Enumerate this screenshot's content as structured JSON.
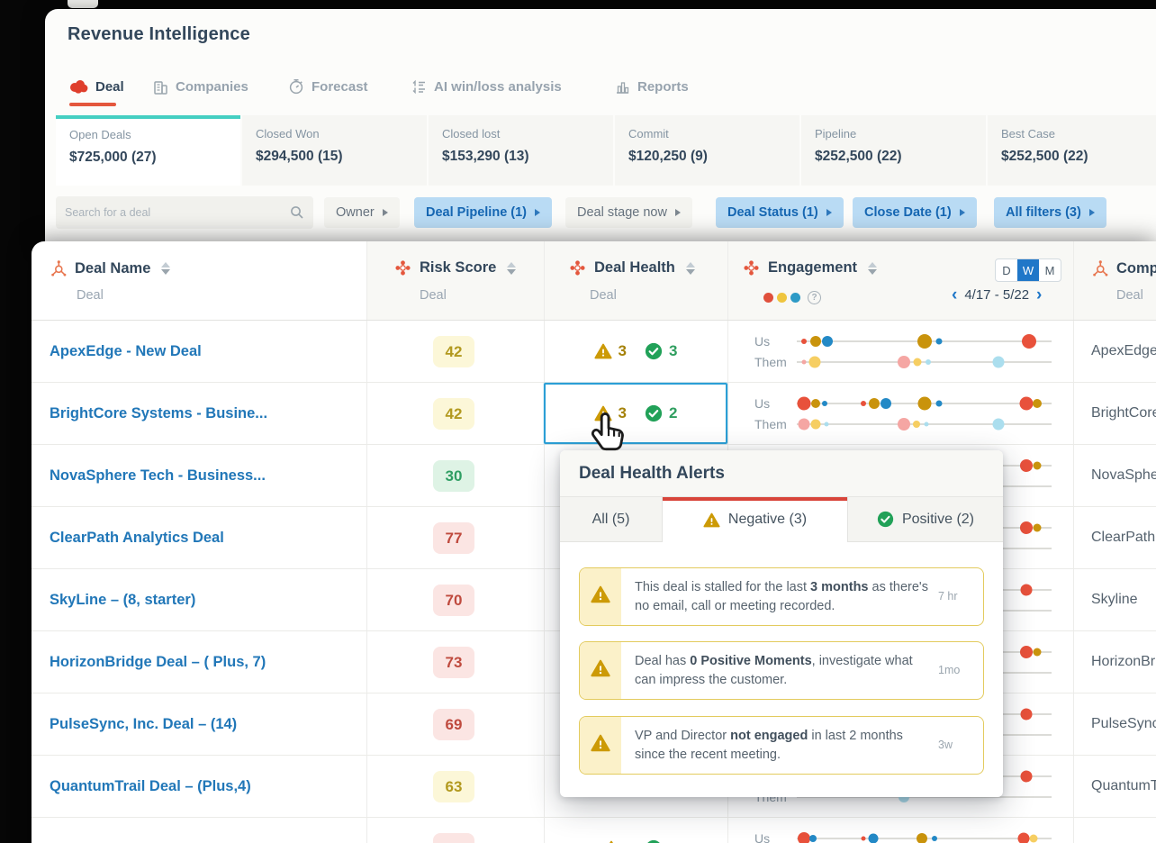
{
  "app": {
    "title": "Revenue Intelligence"
  },
  "nav": {
    "active": "Deal",
    "tabs": [
      {
        "label": "Deal",
        "icon": "gong-logo-icon"
      },
      {
        "label": "Companies",
        "icon": "building-icon"
      },
      {
        "label": "Forecast",
        "icon": "stopwatch-icon"
      },
      {
        "label": "AI win/loss analysis",
        "icon": "win-loss-list-icon"
      },
      {
        "label": "Reports",
        "icon": "bar-chart-icon"
      }
    ]
  },
  "summary_cards": [
    {
      "label": "Open Deals",
      "value": "$725,000 (27)",
      "active": true
    },
    {
      "label": "Closed Won",
      "value": "$294,500 (15)",
      "active": false
    },
    {
      "label": "Closed lost",
      "value": "$153,290 (13)",
      "active": false
    },
    {
      "label": "Commit",
      "value": "$120,250 (9)",
      "active": false
    },
    {
      "label": "Pipeline",
      "value": "$252,500 (22)",
      "active": false
    },
    {
      "label": "Best Case",
      "value": "$252,500 (22)",
      "active": false
    }
  ],
  "filter_bar": {
    "search_placeholder": "Search for a deal",
    "chips": [
      {
        "label": "Owner",
        "style": "plain"
      },
      {
        "label": "Deal Pipeline (1)",
        "style": "blue"
      },
      {
        "label": "Deal stage now",
        "style": "plain"
      },
      {
        "label": "Deal Status (1)",
        "style": "blue"
      },
      {
        "label": "Close Date (1)",
        "style": "blue"
      },
      {
        "label": "All filters (3)",
        "style": "blue"
      }
    ]
  },
  "table": {
    "columns": [
      {
        "title": "Deal Name",
        "sub": "Deal",
        "icon": "hubspot-sprocket-icon"
      },
      {
        "title": "Risk Score",
        "sub": "Deal",
        "icon": "flower-icon"
      },
      {
        "title": "Deal Health",
        "sub": "Deal",
        "icon": "flower-icon"
      },
      {
        "title": "Engagement",
        "sub": "",
        "icon": "flower-icon"
      },
      {
        "title": "Comp",
        "sub": "Deal",
        "icon": "hubspot-sprocket-icon"
      }
    ],
    "view_toggle": {
      "options": [
        "D",
        "W",
        "M"
      ],
      "selected": "W"
    },
    "date_range": "4/17 - 5/22",
    "rows": [
      {
        "name": "ApexEdge - New Deal",
        "company": "ApexEdge",
        "risk": {
          "value": "42",
          "level": "yellow"
        },
        "health": {
          "neg": "3",
          "pos": "3",
          "selected": false
        },
        "engagement": {
          "us": [
            {
              "p": 3,
              "c": "red",
              "s": 6
            },
            {
              "p": 7.5,
              "c": "olive",
              "s": 12
            },
            {
              "p": 12,
              "c": "blue",
              "s": 12
            },
            {
              "p": 50,
              "c": "olive",
              "s": 16
            },
            {
              "p": 56,
              "c": "blue",
              "s": 7
            },
            {
              "p": 91,
              "c": "red",
              "s": 16
            }
          ],
          "them": [
            {
              "p": 3,
              "c": "pink",
              "s": 5
            },
            {
              "p": 7,
              "c": "yellow",
              "s": 13
            },
            {
              "p": 42,
              "c": "pink",
              "s": 14
            },
            {
              "p": 47.5,
              "c": "yellow",
              "s": 9
            },
            {
              "p": 51.5,
              "c": "lblue",
              "s": 6
            },
            {
              "p": 79,
              "c": "lblue",
              "s": 13
            }
          ]
        }
      },
      {
        "name": "BrightCore Systems - Busine...",
        "company": "BrightCore",
        "risk": {
          "value": "42",
          "level": "yellow"
        },
        "health": {
          "neg": "3",
          "pos": "2",
          "selected": true
        },
        "engagement": {
          "us": [
            {
              "p": 3,
              "c": "red",
              "s": 15
            },
            {
              "p": 7.5,
              "c": "olive",
              "s": 10
            },
            {
              "p": 11,
              "c": "blue",
              "s": 6
            },
            {
              "p": 26,
              "c": "red",
              "s": 6
            },
            {
              "p": 30.5,
              "c": "olive",
              "s": 12
            },
            {
              "p": 35,
              "c": "blue",
              "s": 12
            },
            {
              "p": 50,
              "c": "olive",
              "s": 15
            },
            {
              "p": 56,
              "c": "blue",
              "s": 7
            },
            {
              "p": 90,
              "c": "red",
              "s": 15
            },
            {
              "p": 94.5,
              "c": "olive",
              "s": 10
            }
          ],
          "them": [
            {
              "p": 3,
              "c": "pink",
              "s": 13
            },
            {
              "p": 7.5,
              "c": "yellow",
              "s": 11
            },
            {
              "p": 11.5,
              "c": "lblue",
              "s": 5
            },
            {
              "p": 42,
              "c": "pink",
              "s": 14
            },
            {
              "p": 47,
              "c": "yellow",
              "s": 8
            },
            {
              "p": 51,
              "c": "lblue",
              "s": 5
            },
            {
              "p": 79,
              "c": "lblue",
              "s": 13
            }
          ]
        }
      },
      {
        "name": "NovaSphere Tech - Business...",
        "company": "NovaSphere",
        "risk": {
          "value": "30",
          "level": "green"
        },
        "health": null,
        "engagement": {
          "us": [
            {
              "p": 90,
              "c": "red",
              "s": 14
            },
            {
              "p": 94.5,
              "c": "olive",
              "s": 9
            }
          ],
          "them": []
        }
      },
      {
        "name": "ClearPath Analytics Deal",
        "company": "ClearPath",
        "risk": {
          "value": "77",
          "level": "red"
        },
        "health": null,
        "engagement": {
          "us": [
            {
              "p": 90,
              "c": "red",
              "s": 14
            },
            {
              "p": 94.5,
              "c": "olive",
              "s": 9
            }
          ],
          "them": []
        }
      },
      {
        "name": "SkyLine – (8, starter)",
        "company": "Skyline",
        "risk": {
          "value": "70",
          "level": "red"
        },
        "health": null,
        "engagement": {
          "us": [
            {
              "p": 90,
              "c": "red",
              "s": 13
            }
          ],
          "them": []
        }
      },
      {
        "name": "HorizonBridge Deal – ( Plus, 7)",
        "company": "HorizonBridge",
        "risk": {
          "value": "73",
          "level": "red"
        },
        "health": null,
        "engagement": {
          "us": [
            {
              "p": 90,
              "c": "red",
              "s": 14
            },
            {
              "p": 94.5,
              "c": "olive",
              "s": 9
            }
          ],
          "them": []
        }
      },
      {
        "name": "PulseSync, Inc. Deal – (14)",
        "company": "PulseSync",
        "risk": {
          "value": "69",
          "level": "red"
        },
        "health": null,
        "engagement": {
          "us": [
            {
              "p": 90,
              "c": "red",
              "s": 13
            }
          ],
          "them": []
        }
      },
      {
        "name": "QuantumTrail Deal – (Plus,4)",
        "company": "QuantumTrail",
        "risk": {
          "value": "63",
          "level": "yellow"
        },
        "health": null,
        "engagement": {
          "us": [
            {
              "p": 90,
              "c": "red",
              "s": 13
            }
          ],
          "them": [
            {
              "p": 42,
              "c": "lblue",
              "s": 12
            }
          ]
        }
      },
      {
        "name": "",
        "company": "",
        "risk": {
          "value": "",
          "level": "red"
        },
        "health": {
          "neg": "",
          "pos": "",
          "selected": false
        },
        "engagement": {
          "us": [
            {
              "p": 3,
              "c": "red",
              "s": 14
            },
            {
              "p": 6.5,
              "c": "blue",
              "s": 8
            },
            {
              "p": 26,
              "c": "red",
              "s": 5
            },
            {
              "p": 30,
              "c": "blue",
              "s": 11
            },
            {
              "p": 49,
              "c": "olive",
              "s": 12
            },
            {
              "p": 54,
              "c": "blue",
              "s": 6
            },
            {
              "p": 89,
              "c": "red",
              "s": 13
            },
            {
              "p": 93,
              "c": "yellow",
              "s": 9
            }
          ],
          "them": []
        }
      }
    ]
  },
  "popup": {
    "title": "Deal Health Alerts",
    "tabs": [
      {
        "label": "All (5)",
        "active": false
      },
      {
        "label": "Negative (3)",
        "active": true,
        "icon": "warning-triangle-icon"
      },
      {
        "label": "Positive (2)",
        "active": false,
        "icon": "check-circle-icon"
      }
    ],
    "alerts": [
      {
        "pre": "This deal is stalled for the last ",
        "bold": "3 months",
        "post": " as there's no email, call or meeting recorded.",
        "time": "7 hr"
      },
      {
        "pre": "Deal has ",
        "bold": "0 Positive Moments",
        "post": ", investigate what can impress the customer.",
        "time": "1mo"
      },
      {
        "pre": "VP and Director ",
        "bold": "not engaged",
        "post": " in last 2 months since the recent meeting.",
        "time": "3w"
      }
    ]
  },
  "colors": {
    "accent_red": "#e4573d",
    "teal": "#45cfc2",
    "link_blue": "#2177b8",
    "chip_blue_bg": "#b9dbf4",
    "chip_blue_text": "#1566b2",
    "legend": [
      "#e0503c",
      "#efc53e",
      "#2d9ac6"
    ],
    "dots": {
      "red": "#e8513b",
      "olive": "#c9930c",
      "blue": "#2389c6",
      "pink": "#f5a6a3",
      "yellow": "#f6ce62",
      "lblue": "#abdeee"
    }
  }
}
